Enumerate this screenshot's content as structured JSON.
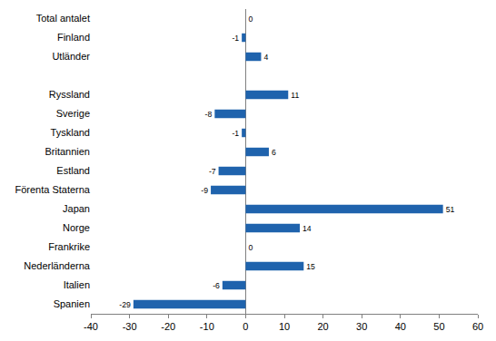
{
  "chart_data": {
    "type": "bar",
    "orientation": "horizontal",
    "categories": [
      "Total antalet",
      "Finland",
      "Utländer",
      null,
      "Ryssland",
      "Sverige",
      "Tyskland",
      "Britannien",
      "Estland",
      "Förenta Staterna",
      "Japan",
      "Norge",
      "Frankrike",
      "Nederländerna",
      "Italien",
      "Spanien"
    ],
    "values": [
      0,
      -1,
      4,
      null,
      11,
      -8,
      -1,
      6,
      -7,
      -9,
      51,
      14,
      0,
      15,
      -6,
      -29
    ],
    "color": "#1f63ad",
    "xlim": [
      -40,
      60
    ],
    "xticks": [
      -40,
      -30,
      -20,
      -10,
      0,
      10,
      20,
      30,
      40,
      50,
      60
    ],
    "grid": false,
    "data_labels": true
  }
}
